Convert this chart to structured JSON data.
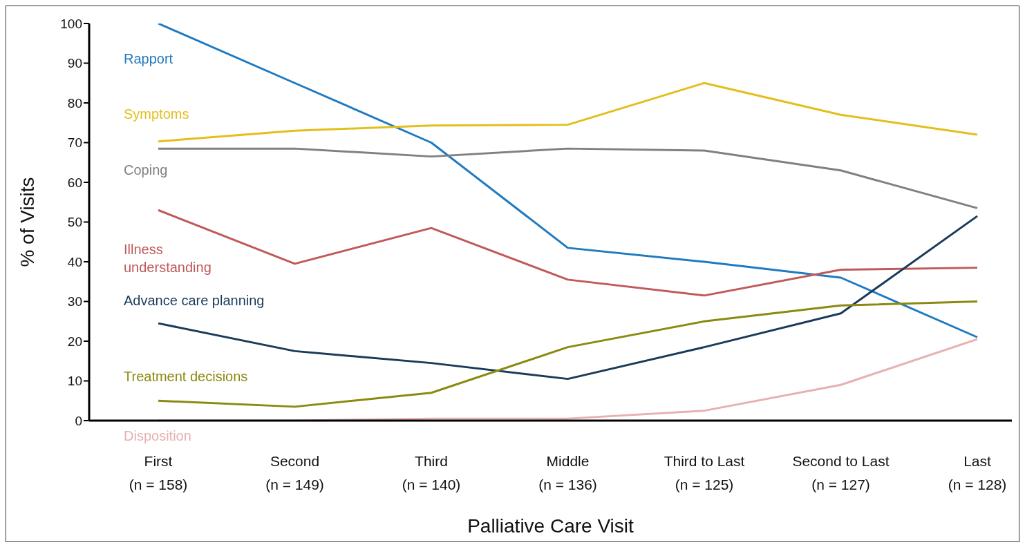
{
  "chart_data": {
    "type": "line",
    "xlabel": "Palliative Care Visit",
    "ylabel": "% of Visits",
    "categories": [
      "First\n(n = 158)",
      "Second\n(n = 149)",
      "Third\n(n = 140)",
      "Middle\n(n = 136)",
      "Third to Last\n(n = 125)",
      "Second to Last\n(n = 127)",
      "Last\n(n = 128)"
    ],
    "ylim": [
      0,
      100
    ],
    "yticks": [
      0,
      10,
      20,
      30,
      40,
      50,
      60,
      70,
      80,
      90,
      100
    ],
    "grid": false,
    "marker": "none",
    "line_style": "solid",
    "series": [
      {
        "name": "Rapport",
        "color": "#1f7ac0",
        "values": [
          100,
          85,
          70,
          43.5,
          40,
          36,
          21
        ]
      },
      {
        "name": "Symptoms",
        "color": "#e2bf1a",
        "values": [
          70.3,
          73,
          74.3,
          74.5,
          85,
          77,
          72
        ]
      },
      {
        "name": "Coping",
        "color": "#808080",
        "values": [
          68.5,
          68.5,
          66.5,
          68.5,
          68,
          63,
          53.5
        ]
      },
      {
        "name": "Illness\nunderstanding",
        "color": "#c0595a",
        "values": [
          53,
          39.5,
          48.5,
          35.5,
          31.5,
          38,
          38.5
        ]
      },
      {
        "name": "Advance care planning",
        "color": "#1a3a5a",
        "values": [
          24.5,
          17.5,
          14.5,
          10.5,
          18.5,
          27,
          51.5
        ]
      },
      {
        "name": "Treatment decisions",
        "color": "#8a8a10",
        "values": [
          5,
          3.5,
          7,
          18.5,
          25,
          29,
          30
        ]
      },
      {
        "name": "Disposition",
        "color": "#e8b0b0",
        "values": [
          0,
          0,
          0.5,
          0.5,
          2.5,
          9,
          20.5
        ]
      }
    ]
  }
}
